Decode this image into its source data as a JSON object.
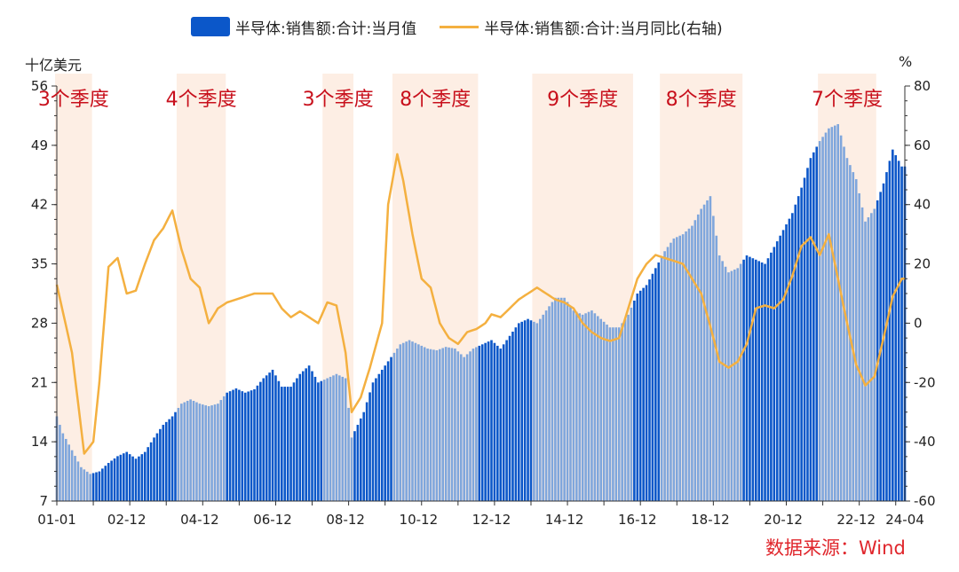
{
  "legend": {
    "bar_label": "半导体:销售额:合计:当月值",
    "line_label": "半导体:销售额:合计:当月同比(右轴)"
  },
  "units": {
    "left": "十亿美元",
    "right": "%"
  },
  "source": "数据来源：Wind",
  "colors": {
    "bar_dark": "#0b57c9",
    "bar_light": "#7fa6dc",
    "line": "#f4b040",
    "shade": "#fdeee4",
    "annotation": "#c8101c",
    "axis": "#333333"
  },
  "chart_data": {
    "type": "bar+line",
    "x_tick_labels": [
      "01-01",
      "02-12",
      "04-12",
      "06-12",
      "08-12",
      "10-12",
      "12-12",
      "14-12",
      "16-12",
      "18-12",
      "20-12",
      "22-12",
      "24-04"
    ],
    "x_start": "2001-01",
    "x_end": "2024-04",
    "y_left": {
      "label": "十亿美元",
      "range": [
        7,
        56
      ],
      "ticks": [
        7,
        14,
        21,
        28,
        35,
        42,
        49,
        56
      ]
    },
    "y_right": {
      "label": "%",
      "range": [
        -60,
        80
      ],
      "ticks": [
        -60,
        -40,
        -20,
        0,
        20,
        40,
        60,
        80
      ]
    },
    "shaded_periods": [
      {
        "start": "2001-01",
        "end": "2001-12",
        "label": "3个季度"
      },
      {
        "start": "2004-05",
        "end": "2005-08",
        "label": "4个季度"
      },
      {
        "start": "2008-05",
        "end": "2009-02",
        "label": "3个季度"
      },
      {
        "start": "2010-04",
        "end": "2012-07",
        "label": "8个季度"
      },
      {
        "start": "2014-02",
        "end": "2016-10",
        "label": "9个季度"
      },
      {
        "start": "2017-08",
        "end": "2019-10",
        "label": "8个季度"
      },
      {
        "start": "2021-12",
        "end": "2023-06",
        "label": "7个季度"
      }
    ],
    "series": [
      {
        "name": "半导体:销售额:合计:当月值",
        "type": "bar",
        "axis": "left",
        "points": [
          [
            "2001-01",
            17.0
          ],
          [
            "2001-03",
            15.0
          ],
          [
            "2001-06",
            13.0
          ],
          [
            "2001-09",
            11.0
          ],
          [
            "2001-12",
            10.2
          ],
          [
            "2002-03",
            10.5
          ],
          [
            "2002-06",
            11.5
          ],
          [
            "2002-09",
            12.3
          ],
          [
            "2002-12",
            12.8
          ],
          [
            "2003-03",
            12.0
          ],
          [
            "2003-06",
            12.8
          ],
          [
            "2003-09",
            14.5
          ],
          [
            "2003-12",
            16.0
          ],
          [
            "2004-03",
            17.0
          ],
          [
            "2004-06",
            18.5
          ],
          [
            "2004-09",
            19.0
          ],
          [
            "2004-12",
            18.5
          ],
          [
            "2005-03",
            18.2
          ],
          [
            "2005-06",
            18.5
          ],
          [
            "2005-09",
            19.8
          ],
          [
            "2005-12",
            20.3
          ],
          [
            "2006-03",
            19.8
          ],
          [
            "2006-06",
            20.2
          ],
          [
            "2006-09",
            21.5
          ],
          [
            "2006-12",
            22.5
          ],
          [
            "2007-03",
            20.5
          ],
          [
            "2007-06",
            20.5
          ],
          [
            "2007-09",
            22.0
          ],
          [
            "2007-12",
            23.0
          ],
          [
            "2008-03",
            21.0
          ],
          [
            "2008-06",
            21.5
          ],
          [
            "2008-09",
            22.0
          ],
          [
            "2008-12",
            21.5
          ],
          [
            "2009-02",
            14.5
          ],
          [
            "2009-06",
            17.5
          ],
          [
            "2009-09",
            21.0
          ],
          [
            "2009-12",
            22.5
          ],
          [
            "2010-03",
            24.0
          ],
          [
            "2010-06",
            25.5
          ],
          [
            "2010-09",
            26.0
          ],
          [
            "2010-12",
            25.5
          ],
          [
            "2011-03",
            25.0
          ],
          [
            "2011-06",
            24.8
          ],
          [
            "2011-09",
            25.2
          ],
          [
            "2011-12",
            25.0
          ],
          [
            "2012-03",
            24.0
          ],
          [
            "2012-06",
            25.0
          ],
          [
            "2012-09",
            25.5
          ],
          [
            "2012-12",
            26.0
          ],
          [
            "2013-03",
            25.0
          ],
          [
            "2013-06",
            26.5
          ],
          [
            "2013-09",
            28.0
          ],
          [
            "2013-12",
            28.5
          ],
          [
            "2014-03",
            28.0
          ],
          [
            "2014-06",
            29.5
          ],
          [
            "2014-09",
            31.0
          ],
          [
            "2014-12",
            31.0
          ],
          [
            "2015-03",
            29.5
          ],
          [
            "2015-06",
            29.0
          ],
          [
            "2015-09",
            29.5
          ],
          [
            "2015-12",
            28.5
          ],
          [
            "2016-03",
            27.5
          ],
          [
            "2016-06",
            27.5
          ],
          [
            "2016-09",
            29.0
          ],
          [
            "2016-12",
            31.5
          ],
          [
            "2017-03",
            32.5
          ],
          [
            "2017-06",
            34.5
          ],
          [
            "2017-09",
            36.5
          ],
          [
            "2017-12",
            38.0
          ],
          [
            "2018-03",
            38.5
          ],
          [
            "2018-06",
            39.5
          ],
          [
            "2018-09",
            41.5
          ],
          [
            "2018-12",
            43.0
          ],
          [
            "2019-03",
            36.0
          ],
          [
            "2019-06",
            34.0
          ],
          [
            "2019-09",
            34.5
          ],
          [
            "2019-12",
            36.0
          ],
          [
            "2020-03",
            35.5
          ],
          [
            "2020-06",
            35.0
          ],
          [
            "2020-09",
            37.0
          ],
          [
            "2020-12",
            39.0
          ],
          [
            "2021-03",
            41.0
          ],
          [
            "2021-06",
            44.0
          ],
          [
            "2021-09",
            47.5
          ],
          [
            "2021-12",
            49.5
          ],
          [
            "2022-03",
            51.0
          ],
          [
            "2022-06",
            51.5
          ],
          [
            "2022-09",
            47.5
          ],
          [
            "2022-12",
            45.0
          ],
          [
            "2023-03",
            40.0
          ],
          [
            "2023-06",
            41.5
          ],
          [
            "2023-09",
            44.5
          ],
          [
            "2023-12",
            48.5
          ],
          [
            "2024-03",
            46.5
          ],
          [
            "2024-04",
            46.5
          ]
        ]
      },
      {
        "name": "半导体:销售额:合计:当月同比(右轴)",
        "type": "line",
        "axis": "right",
        "points": [
          [
            "2001-01",
            13
          ],
          [
            "2001-06",
            -10
          ],
          [
            "2001-10",
            -44
          ],
          [
            "2002-01",
            -40
          ],
          [
            "2002-03",
            -20
          ],
          [
            "2002-06",
            19
          ],
          [
            "2002-09",
            22
          ],
          [
            "2002-12",
            10
          ],
          [
            "2003-03",
            11
          ],
          [
            "2003-06",
            20
          ],
          [
            "2003-09",
            28
          ],
          [
            "2003-12",
            32
          ],
          [
            "2004-03",
            38
          ],
          [
            "2004-06",
            25
          ],
          [
            "2004-09",
            15
          ],
          [
            "2004-12",
            12
          ],
          [
            "2005-03",
            0
          ],
          [
            "2005-06",
            5
          ],
          [
            "2005-09",
            7
          ],
          [
            "2005-12",
            8
          ],
          [
            "2006-03",
            9
          ],
          [
            "2006-06",
            10
          ],
          [
            "2006-09",
            10
          ],
          [
            "2006-12",
            10
          ],
          [
            "2007-03",
            5
          ],
          [
            "2007-06",
            2
          ],
          [
            "2007-09",
            4
          ],
          [
            "2007-12",
            2
          ],
          [
            "2008-03",
            0
          ],
          [
            "2008-06",
            7
          ],
          [
            "2008-09",
            6
          ],
          [
            "2008-12",
            -10
          ],
          [
            "2009-02",
            -30
          ],
          [
            "2009-05",
            -25
          ],
          [
            "2009-08",
            -15
          ],
          [
            "2009-12",
            0
          ],
          [
            "2010-02",
            40
          ],
          [
            "2010-05",
            57
          ],
          [
            "2010-07",
            48
          ],
          [
            "2010-10",
            30
          ],
          [
            "2011-01",
            15
          ],
          [
            "2011-04",
            12
          ],
          [
            "2011-07",
            0
          ],
          [
            "2011-10",
            -5
          ],
          [
            "2012-01",
            -7
          ],
          [
            "2012-04",
            -3
          ],
          [
            "2012-07",
            -2
          ],
          [
            "2012-10",
            0
          ],
          [
            "2012-12",
            3
          ],
          [
            "2013-03",
            2
          ],
          [
            "2013-06",
            5
          ],
          [
            "2013-09",
            8
          ],
          [
            "2013-12",
            10
          ],
          [
            "2014-03",
            12
          ],
          [
            "2014-06",
            10
          ],
          [
            "2014-09",
            8
          ],
          [
            "2014-12",
            7
          ],
          [
            "2015-03",
            5
          ],
          [
            "2015-06",
            0
          ],
          [
            "2015-09",
            -3
          ],
          [
            "2015-12",
            -5
          ],
          [
            "2016-03",
            -6
          ],
          [
            "2016-06",
            -5
          ],
          [
            "2016-09",
            5
          ],
          [
            "2016-12",
            15
          ],
          [
            "2017-03",
            20
          ],
          [
            "2017-06",
            23
          ],
          [
            "2017-09",
            22
          ],
          [
            "2017-12",
            21
          ],
          [
            "2018-03",
            20
          ],
          [
            "2018-06",
            15
          ],
          [
            "2018-09",
            10
          ],
          [
            "2018-12",
            -1
          ],
          [
            "2019-03",
            -13
          ],
          [
            "2019-06",
            -15
          ],
          [
            "2019-09",
            -13
          ],
          [
            "2019-12",
            -7
          ],
          [
            "2020-03",
            5
          ],
          [
            "2020-06",
            6
          ],
          [
            "2020-09",
            5
          ],
          [
            "2020-12",
            8
          ],
          [
            "2021-03",
            16
          ],
          [
            "2021-06",
            26
          ],
          [
            "2021-09",
            29
          ],
          [
            "2021-12",
            23
          ],
          [
            "2022-03",
            30
          ],
          [
            "2022-06",
            15
          ],
          [
            "2022-09",
            0
          ],
          [
            "2022-12",
            -14
          ],
          [
            "2023-03",
            -21
          ],
          [
            "2023-06",
            -18
          ],
          [
            "2023-09",
            -5
          ],
          [
            "2023-12",
            9
          ],
          [
            "2024-03",
            15
          ],
          [
            "2024-04",
            15
          ]
        ]
      }
    ]
  }
}
